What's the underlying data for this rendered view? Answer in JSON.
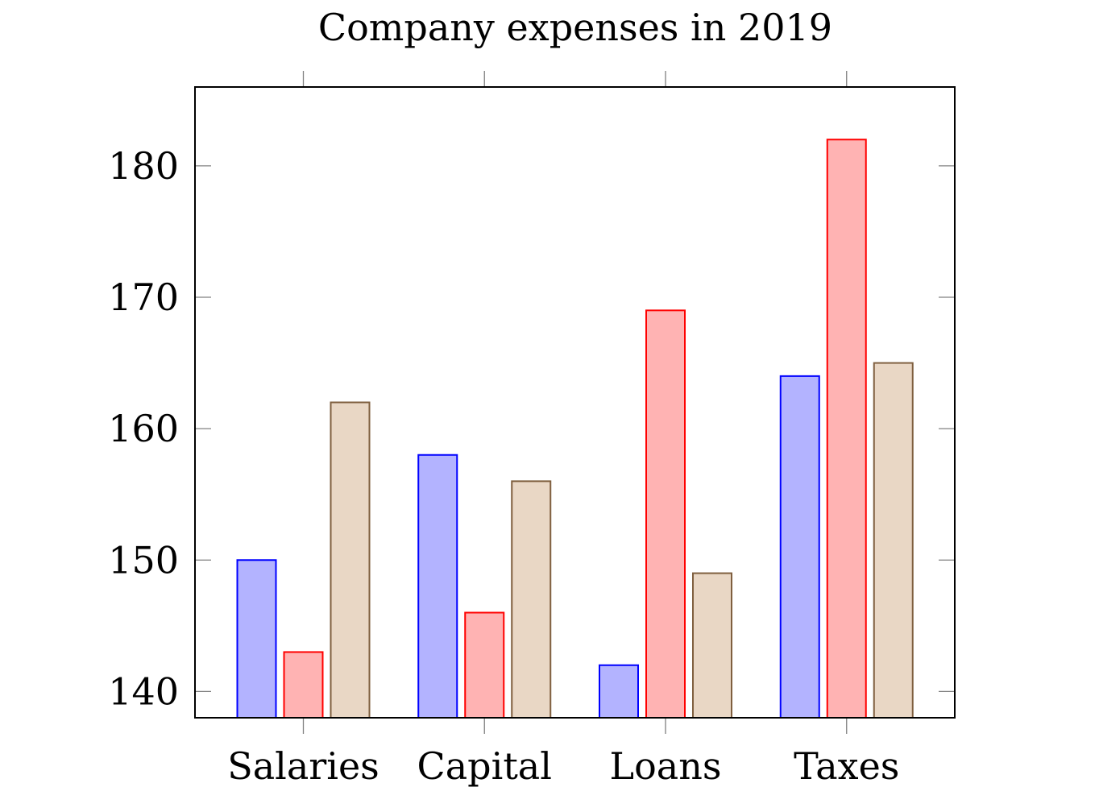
{
  "chart_data": {
    "type": "bar",
    "title": "Company expenses in 2019",
    "xlabel": "",
    "ylabel": "",
    "categories": [
      "Salaries",
      "Capital",
      "Loans",
      "Taxes"
    ],
    "y_ticks": [
      140,
      150,
      160,
      170,
      180
    ],
    "ylim": [
      138,
      186
    ],
    "grid": false,
    "series": [
      {
        "values": [
          150,
          158,
          142,
          164
        ],
        "fill": "#b3b3ff",
        "stroke": "#0000ff"
      },
      {
        "values": [
          143,
          146,
          169,
          182
        ],
        "fill": "#ffb3b3",
        "stroke": "#ff0000"
      },
      {
        "values": [
          162,
          156,
          149,
          165
        ],
        "fill": "#e9d7c5",
        "stroke": "#7f5f3f"
      }
    ]
  }
}
